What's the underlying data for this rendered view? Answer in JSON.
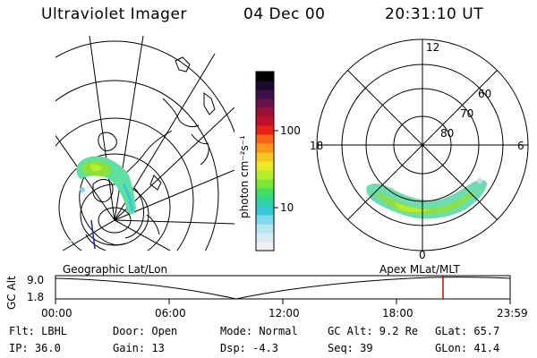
{
  "header": {
    "title": "Ultraviolet Imager",
    "date": "04 Dec 00",
    "time": "20:31:10 UT"
  },
  "colorbar": {
    "unit": "photon cm⁻²s⁻¹",
    "tick_100": "100",
    "tick_10": "10",
    "colors": [
      "#f0f0f0",
      "#d8ecf4",
      "#b8e4ec",
      "#7fd7ee",
      "#37c7d9",
      "#2fd3a3",
      "#42dc69",
      "#7ae63a",
      "#b4ee2d",
      "#e8ea28",
      "#f7c81f",
      "#f9981a",
      "#f46414",
      "#e82214",
      "#c40f2b",
      "#991131",
      "#6a1247",
      "#3b0f4c",
      "#1b0a2c",
      "#000000"
    ]
  },
  "left_map": {
    "label": "Geographic Lat/Lon"
  },
  "right_map": {
    "label": "Apex  MLat/MLT",
    "mlt_12": "12",
    "mlt_18": "18",
    "mlt_6": "6",
    "mlt_0": "0",
    "lat_60": "60",
    "lat_70": "70",
    "lat_80": "80"
  },
  "timeline": {
    "y_axis_label": "GC Alt",
    "y_top": "9.0",
    "y_bottom": "1.8",
    "ticks": [
      "00:00",
      "06:00",
      "12:00",
      "18:00",
      "23:59"
    ],
    "marker_color": "#e00000"
  },
  "status": {
    "flt": "Flt: LBHL",
    "door": "Door: Open",
    "mode": "Mode: Normal",
    "gc_alt": "GC Alt: 9.2 Re",
    "glat": "GLat:  65.7",
    "ip": "IP: 36.0",
    "gain": "Gain: 13",
    "dsp": "Dsp:    -4.3",
    "seq": "Seq: 39",
    "glon": "GLon:  41.4"
  }
}
